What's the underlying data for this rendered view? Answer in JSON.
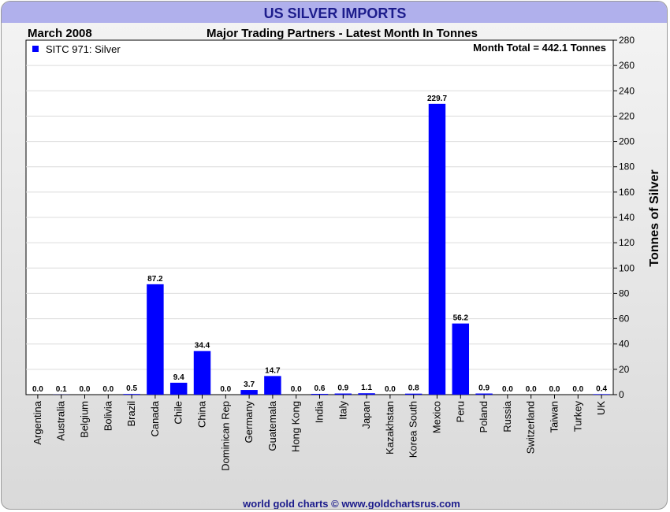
{
  "header": {
    "title": "US SILVER IMPORTS",
    "period": "March 2008",
    "subtitle": "Major Trading Partners - Latest Month In Tonnes",
    "month_total": "Month Total = 442.1 Tonnes"
  },
  "footer": {
    "credit": "world gold charts © www.goldchartsrus.com"
  },
  "colors": {
    "bar": "#0000ff",
    "title_bg": "#b0b0ec",
    "title_text": "#1c1c8c",
    "footer_text": "#1c1c8c"
  },
  "chart_data": {
    "type": "bar",
    "title": "US SILVER IMPORTS",
    "subtitle": "Major Trading Partners - Latest Month In Tonnes",
    "ylabel": "Tonnes of Silver",
    "xlabel": "",
    "y_axis_position": "right",
    "ylim": [
      0,
      280
    ],
    "yticks": [
      0,
      20,
      40,
      60,
      80,
      100,
      120,
      140,
      160,
      180,
      200,
      220,
      240,
      260,
      280
    ],
    "grid": true,
    "legend_position": "top-left",
    "categories": [
      "Argentina",
      "Australia",
      "Belgium",
      "Bolivia",
      "Brazil",
      "Canada",
      "Chile",
      "China",
      "Dominican Rep",
      "Germany",
      "Guatemala",
      "Hong Kong",
      "India",
      "Italy",
      "Japan",
      "Kazakhstan",
      "Korea South",
      "Mexico",
      "Peru",
      "Poland",
      "Russia",
      "Switzerland",
      "Taiwan",
      "Turkey",
      "UK"
    ],
    "series": [
      {
        "name": "SITC 971: Silver",
        "values": [
          0.0,
          0.1,
          0.0,
          0.0,
          0.5,
          87.2,
          9.4,
          34.4,
          0.0,
          3.7,
          14.7,
          0.0,
          0.6,
          0.9,
          1.1,
          0.0,
          0.8,
          229.7,
          56.2,
          0.9,
          0.0,
          0.0,
          0.0,
          0.0,
          0.4
        ]
      }
    ]
  }
}
